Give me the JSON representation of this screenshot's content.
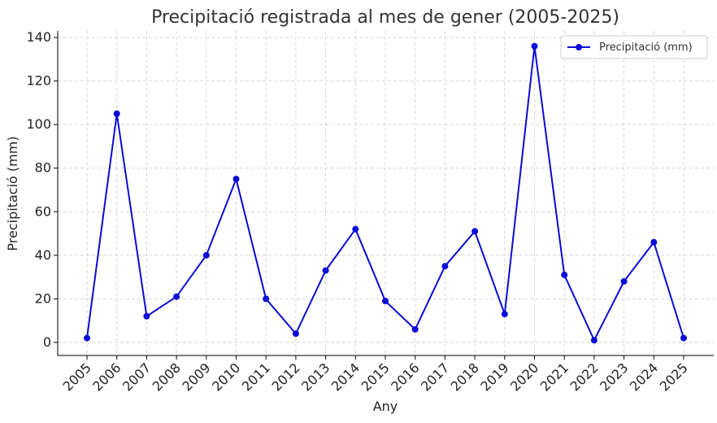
{
  "chart_data": {
    "type": "line",
    "title": "Precipitació registrada al mes de gener (2005-2025)",
    "xlabel": "Any",
    "ylabel": "Precipitació (mm)",
    "categories": [
      "2005",
      "2006",
      "2007",
      "2008",
      "2009",
      "2010",
      "2011",
      "2012",
      "2013",
      "2014",
      "2015",
      "2016",
      "2017",
      "2018",
      "2019",
      "2020",
      "2021",
      "2022",
      "2023",
      "2024",
      "2025"
    ],
    "series": [
      {
        "name": "Precipitació (mm)",
        "values": [
          2,
          105,
          12,
          21,
          40,
          75,
          20,
          4,
          33,
          52,
          19,
          6,
          35,
          51,
          13,
          136,
          31,
          1,
          28,
          46,
          2
        ]
      }
    ],
    "ylim": [
      -6,
      143
    ],
    "yticks": [
      0,
      20,
      40,
      60,
      80,
      100,
      120,
      140
    ],
    "grid": true,
    "legend_position": "top-right",
    "colors": {
      "series": "#0b0bd6"
    }
  }
}
